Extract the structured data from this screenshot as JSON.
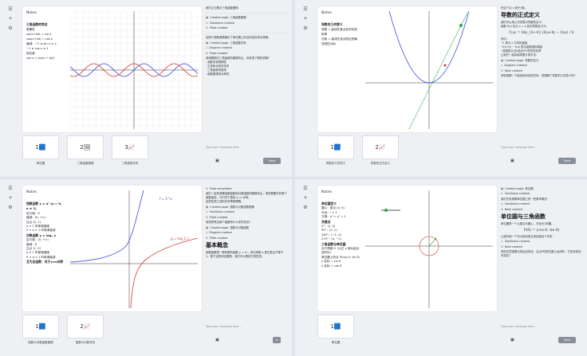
{
  "common": {
    "notes_label": "Notes",
    "input_placeholder": "Type your message here...",
    "send_label": "Send",
    "attach_icon": "paperclip-icon"
  },
  "q1": {
    "notes": {
      "title": "三角函数的特点",
      "items": [
        "周期性",
        "sin(x+2π) = sin x",
        "cos(x+2π) = cos x",
        "值域：−1 ≤ sin x ≤ 1，",
        "−1 ≤ cos x ≤ 1",
        "相位差",
        "cos x = sin(x + π/2)"
      ]
    },
    "chart_data": {
      "type": "line",
      "series": [
        {
          "name": "f(x)",
          "values": "sin(x)"
        },
        {
          "name": "g(x)",
          "values": "cos(x)"
        }
      ],
      "xlim": [
        -10,
        10
      ],
      "ylim": [
        -10,
        10
      ],
      "grid": true
    },
    "thumbs": [
      {
        "num": "1",
        "caption": "单位圆"
      },
      {
        "num": "2",
        "caption": "三角函数图像"
      },
      {
        "num": "3",
        "caption": "三角函数关系"
      }
    ],
    "chat": [
      "我们让它展示三角函数图像",
      "Created page: 三角函数图像",
      "GeoGebra created",
      "Plote created"
    ],
    "chat2": [
      "这两个函数图像展示了单位圆上的点的坐标变化规律。",
      "Created page: 三角函数关系",
      "Diagram created",
      "Plote created",
      "请观察图中三角函数的图像特点，你发现了哪些规律？",
      "· 函数呈现周期性",
      "· 正弦和余弦的关系",
      "· 三角函数的值域",
      "· 函数图像的对称性"
    ]
  },
  "q2": {
    "notes": {
      "title": "导数的几何意义",
      "items": [
        "导数 = 曲线在某点处的切线斜率",
        "切线 = 曲线在该点附近的最佳线性近似"
      ]
    },
    "chat_top": "在这个点 x 趋于0处。",
    "heading": "导数的正式定义",
    "chat": [
      "我们可以用公式来表示导数的定义：",
      "函数 f(x) 在点 x = a 处的导数定义为：",
      "其中：",
      "· h 表示 x 方向的增量",
      "· f(a+h) − f(a) 表示函数值的增量",
      "· 极限表示当h趋近于0时的变化率",
      "让我们一起探索导数计算方法：",
      "Created page: 导数的定义",
      "Diagram created",
      "Note created",
      "请您观察一下曲线和切线的关系，您理解了导数的几何意义吗？"
    ],
    "formula": "f′(a) = lim_{h→0} (f(a+h) − f(a)) / h",
    "thumbs": [
      {
        "num": "1",
        "caption": "导数的几何意义"
      },
      {
        "num": "2",
        "caption": "导数的正式定义"
      }
    ]
  },
  "q3": {
    "notes": {
      "title": "指数函数 y = aˣ (a > 0, a ≠ 1)",
      "items": [
        "定义域：R",
        "值域：(0, +∞)",
        "过点 (0, 1)",
        "a > 1 时单调递增",
        "0 < a < 1 时单调递减",
        "对数函数 y = logₐ x",
        "定义域：(0, +∞)",
        "值域：R",
        "过点 (1, 0)",
        "a > 1 时单调递增",
        "0 < a < 1 时单调递减",
        "互为反函数：关于y=x对称"
      ]
    },
    "labels": [
      "f = 2^x",
      "g = log_2 x"
    ],
    "heading": "基本概念",
    "chat": [
      "Plote completed",
      "我们一起来观察指数函数和对数函数的图像特点。请您看图中的两个函数曲线，它们关于直线 y=x 对称。",
      "这些性质之间的关系帮助理解。",
      "Created page: 指数与对数函数图像",
      "GeoGebra created",
      "Plote created",
      "请您思考这两个函数有什么样的关系？",
      "Created page: 指数与对数函数",
      "Diagram created",
      "Plote created"
    ],
    "chat_bottom": "指数函数是一种特殊的函数 y = aˣ，其中底数 a 是正数且不等于 1。基于这些特征图像，我们可以看到它的性质。",
    "thumbs": [
      {
        "num": "1",
        "caption": "指数与对数函数图像"
      },
      {
        "num": "2",
        "caption": "指数与对数关系"
      }
    ]
  },
  "q4": {
    "notes": {
      "title": "单位圆定义",
      "items": [
        "圆心：原点 (0, 0)",
        "半径：r = 1",
        "方程：x² + y² = 1",
        "关键点",
        "0°：(1, 0)",
        "90°：(0, 1)",
        "180°：(−1, 0)",
        "270°：(0, −1)",
        "三角函数与单位圆",
        "对于角度 θ（以正 x 轴为起点逆时针）",
        "单位圆上的点 P(cos θ, sin θ)",
        "y 坐标 = sin θ",
        "x 坐标 = cos θ"
      ]
    },
    "heading": "单位圆与三角函数",
    "chat": [
      "Created page: 单位圆",
      "GeoGebra created",
      "我们先来观察单位圆上的一些基本概念：",
      "GeoGebra created",
      "Note created"
    ],
    "chat2": [
      "单位圆是一个以原点为圆心，半径为1的圆。",
      "P(θ) = (cos θ, sin θ)",
      "让我们用一个可以拖动的点来探索这个关系：",
      "GeoGebra created",
      "Note created",
      "请您注意观察点的运动变化，当点P在单位圆上运动时，它的坐标如何变化？"
    ],
    "thumbs": [
      {
        "num": "1",
        "caption": "单位圆"
      }
    ]
  }
}
